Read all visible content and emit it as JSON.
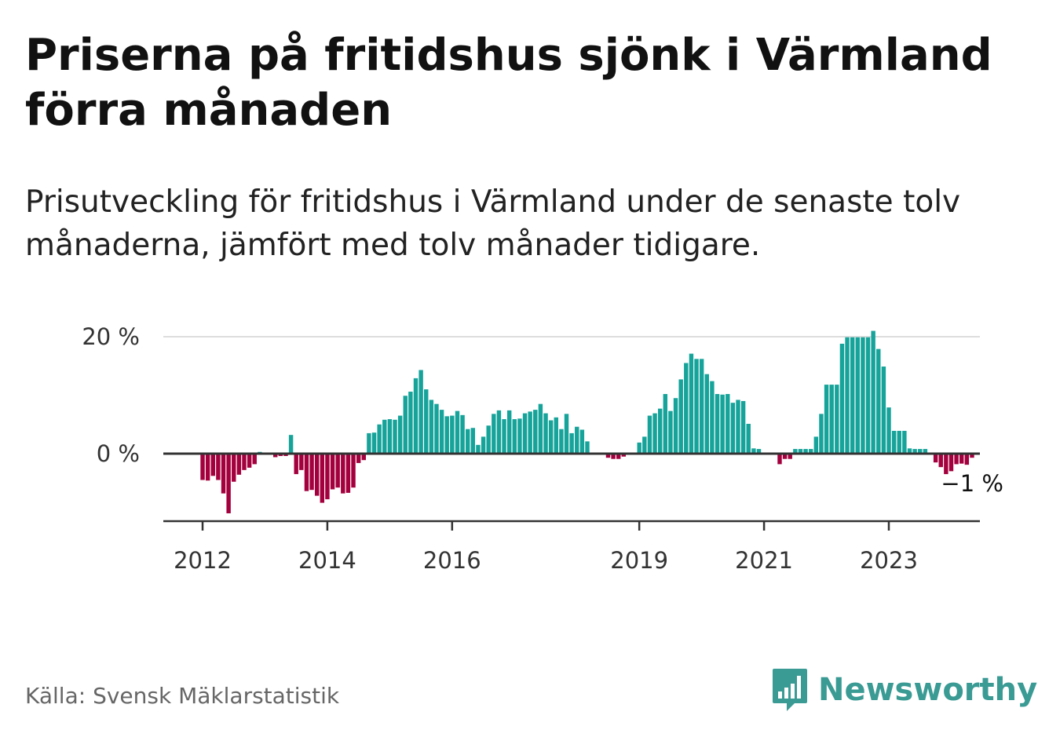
{
  "header": {
    "title": "Priserna på fritidshus sjönk i Värmland förra månaden",
    "subtitle": "Prisutveckling för fritidshus i Värmland under de senaste tolv månaderna, jämfört med tolv månader tidigare."
  },
  "footer": {
    "source": "Källa: Svensk Mäklarstatistik",
    "brand": "Newsworthy",
    "brand_icon": "bar-chart-logo-icon"
  },
  "colors": {
    "positive": "#16a39a",
    "negative": "#a3003d",
    "axis": "#333333",
    "grid": "#dddddd",
    "brand": "#3a9a94"
  },
  "chart_data": {
    "type": "bar",
    "title": "",
    "xlabel": "",
    "ylabel": "",
    "ylim": [
      -11,
      20
    ],
    "y_ticks": [
      {
        "value": 0,
        "label": "0 %"
      },
      {
        "value": 20,
        "label": "20 %"
      }
    ],
    "x_ticks": [
      {
        "value": 2012.0,
        "label": "2012"
      },
      {
        "value": 2014.0,
        "label": "2014"
      },
      {
        "value": 2016.0,
        "label": "2016"
      },
      {
        "value": 2019.0,
        "label": "2019"
      },
      {
        "value": 2021.0,
        "label": "2021"
      },
      {
        "value": 2023.0,
        "label": "2023"
      }
    ],
    "x_start": 2011.917,
    "step_months": 1,
    "grid": "horizontal",
    "annotation": {
      "text": "−1 %"
    },
    "values": [
      0,
      -4.5,
      -4.6,
      -3.8,
      -4.5,
      -6.8,
      -10.2,
      -4.8,
      -3.6,
      -2.8,
      -2.4,
      -1.8,
      0.3,
      0,
      0,
      -0.6,
      -0.4,
      -0.4,
      3.2,
      -3.5,
      -2.8,
      -6.4,
      -6.2,
      -7.2,
      -8.4,
      -7.8,
      -6.1,
      -5.8,
      -6.8,
      -6.7,
      -5.8,
      -1.6,
      -1.1,
      3.5,
      3.6,
      5.0,
      5.8,
      5.9,
      5.8,
      6.5,
      9.9,
      10.6,
      12.9,
      14.3,
      11.0,
      9.2,
      8.5,
      7.5,
      6.4,
      6.5,
      7.3,
      6.6,
      4.2,
      4.4,
      1.5,
      2.9,
      4.8,
      6.8,
      7.4,
      5.9,
      7.4,
      5.9,
      6.0,
      6.9,
      7.2,
      7.5,
      8.5,
      6.9,
      5.7,
      6.2,
      4.2,
      6.8,
      3.5,
      4.6,
      4.1,
      2.1,
      0,
      0,
      0,
      -0.7,
      -0.9,
      -0.9,
      -0.5,
      0,
      0,
      1.9,
      2.9,
      6.5,
      6.9,
      7.7,
      10.2,
      7.3,
      9.5,
      12.7,
      15.5,
      17.1,
      16.2,
      16.2,
      13.6,
      12.4,
      10.2,
      10.1,
      10.2,
      8.7,
      9.2,
      9.0,
      5.1,
      0.9,
      0.8,
      0,
      0,
      0,
      -1.8,
      -0.9,
      -0.9,
      0.8,
      0.8,
      0.8,
      0.8,
      2.9,
      6.8,
      11.8,
      11.8,
      11.8,
      18.8,
      19.9,
      19.9,
      19.9,
      19.9,
      19.9,
      21.0,
      17.9,
      14.9,
      7.9,
      3.9,
      3.9,
      3.9,
      0.9,
      0.8,
      0.8,
      0.8,
      0,
      -1.5,
      -2.3,
      -3.5,
      -3.0,
      -1.8,
      -1.7,
      -1.9,
      -0.7
    ]
  }
}
